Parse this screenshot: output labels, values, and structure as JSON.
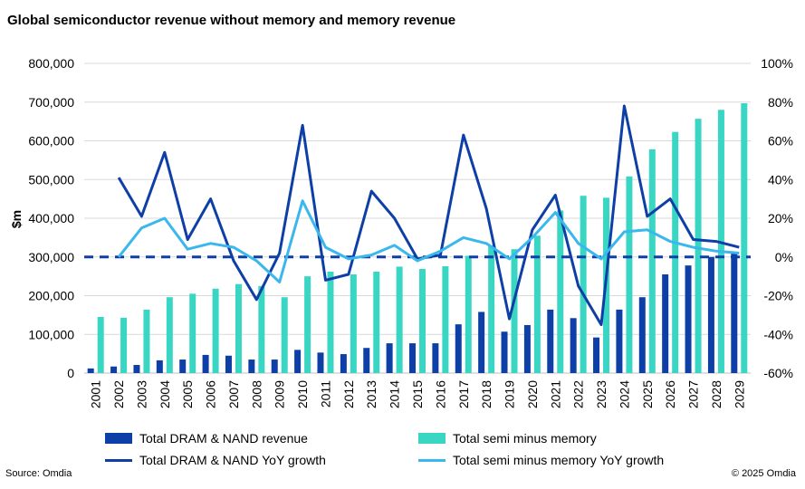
{
  "title": "Global semiconductor revenue without memory and memory revenue",
  "source": "Source: Omdia",
  "copyright": "© 2025 Omdia",
  "chart_data": {
    "type": "bar+line",
    "ylabel": "$m",
    "ylim": [
      0,
      800000
    ],
    "y2lim": [
      -60,
      100
    ],
    "y_ticks": [
      "0",
      "100,000",
      "200,000",
      "300,000",
      "400,000",
      "500,000",
      "600,000",
      "700,000",
      "800,000"
    ],
    "y2_ticks": [
      "-60%",
      "-40%",
      "-20%",
      "0%",
      "20%",
      "40%",
      "60%",
      "80%",
      "100%"
    ],
    "categories": [
      "2001",
      "2002",
      "2003",
      "2004",
      "2005",
      "2006",
      "2007",
      "2008",
      "2009",
      "2010",
      "2011",
      "2012",
      "2013",
      "2014",
      "2015",
      "2016",
      "2017",
      "2018",
      "2019",
      "2020",
      "2021",
      "2022",
      "2023",
      "2024",
      "2025",
      "2026",
      "2027",
      "2028",
      "2029"
    ],
    "series": [
      {
        "name": "Total DRAM & NAND revenue",
        "type": "bar",
        "axis": "left",
        "color": "#0d3fa6",
        "values": [
          12000,
          17000,
          21000,
          33000,
          35000,
          47000,
          45000,
          35000,
          35000,
          60000,
          53000,
          49000,
          65000,
          77000,
          77000,
          77000,
          126000,
          158000,
          107000,
          124000,
          164000,
          142000,
          92000,
          164000,
          196000,
          255000,
          278000,
          300000,
          310000
        ]
      },
      {
        "name": "Total semi minus memory",
        "type": "bar",
        "axis": "right-bar",
        "color": "#3ad6c4",
        "values": [
          145000,
          143000,
          164000,
          196000,
          205000,
          218000,
          230000,
          225000,
          196000,
          250000,
          262000,
          255000,
          262000,
          275000,
          269000,
          276000,
          303000,
          330000,
          320000,
          355000,
          420000,
          458000,
          453000,
          508000,
          578000,
          623000,
          657000,
          680000,
          697000
        ]
      },
      {
        "name": "Total DRAM & NAND YoY growth",
        "type": "line",
        "axis": "right",
        "color": "#0d3fa6",
        "values": [
          null,
          41,
          21,
          54,
          9,
          30,
          -2,
          -22,
          2,
          68,
          -12,
          -9,
          34,
          20,
          -1,
          1,
          63,
          25,
          -32,
          14,
          32,
          -15,
          -35,
          78,
          21,
          30,
          9,
          8,
          5
        ]
      },
      {
        "name": "Total semi minus memory YoY growth",
        "type": "line",
        "axis": "right",
        "color": "#3ab7ec",
        "values": [
          null,
          0,
          15,
          20,
          4,
          7,
          5,
          -2,
          -13,
          29,
          5,
          -1,
          1,
          6,
          -2,
          3,
          10,
          7,
          -1,
          10,
          23,
          7,
          -1,
          13,
          14,
          8,
          5,
          3,
          2
        ]
      }
    ],
    "reference_line": {
      "axis": "right",
      "value": 0,
      "style": "dashed",
      "color": "#0d3fa6"
    },
    "grid": true,
    "legend_position": "bottom"
  }
}
